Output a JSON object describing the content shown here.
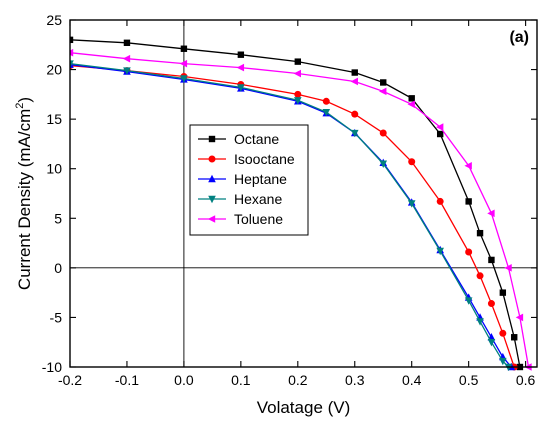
{
  "chart_data": {
    "type": "line",
    "panel_label": "(a)",
    "xlabel": "Volatage (V)",
    "ylabel_main": "Current Density (mA/cm",
    "ylabel_sup": "2",
    "ylabel_end": ")",
    "xlim": [
      -0.2,
      0.62
    ],
    "ylim": [
      -10,
      25
    ],
    "xticks": [
      -0.2,
      -0.1,
      0.0,
      0.1,
      0.2,
      0.3,
      0.4,
      0.5,
      0.6
    ],
    "xtick_labels": [
      "-0.2",
      "-0.1",
      "0.0",
      "0.1",
      "0.2",
      "0.3",
      "0.4",
      "0.5",
      "0.6"
    ],
    "yticks": [
      -10,
      -5,
      0,
      5,
      10,
      15,
      20,
      25
    ],
    "ytick_labels": [
      "-10",
      "-5",
      "0",
      "5",
      "10",
      "15",
      "20",
      "25"
    ],
    "reference_lines": {
      "x": 0,
      "y": 0
    },
    "legend_position": "center-left",
    "series": [
      {
        "name": "Octane",
        "color": "#000000",
        "marker": "square",
        "x": [
          -0.2,
          -0.1,
          0.0,
          0.1,
          0.2,
          0.3,
          0.35,
          0.4,
          0.45,
          0.5,
          0.52,
          0.54,
          0.56,
          0.58,
          0.59
        ],
        "y": [
          23.0,
          22.7,
          22.1,
          21.5,
          20.8,
          19.7,
          18.7,
          17.1,
          13.5,
          6.7,
          3.5,
          0.8,
          -2.5,
          -7.0,
          -10.0
        ]
      },
      {
        "name": "Isooctane",
        "color": "#ff0000",
        "marker": "circle",
        "x": [
          -0.2,
          -0.1,
          0.0,
          0.1,
          0.2,
          0.25,
          0.3,
          0.35,
          0.4,
          0.45,
          0.5,
          0.52,
          0.54,
          0.56,
          0.58
        ],
        "y": [
          20.4,
          19.9,
          19.3,
          18.5,
          17.5,
          16.8,
          15.5,
          13.6,
          10.7,
          6.7,
          1.6,
          -0.8,
          -3.6,
          -6.6,
          -10.0
        ]
      },
      {
        "name": "Heptane",
        "color": "#0000ff",
        "marker": "triangle-up",
        "x": [
          -0.2,
          -0.1,
          0.0,
          0.1,
          0.2,
          0.25,
          0.3,
          0.35,
          0.4,
          0.45,
          0.5,
          0.52,
          0.54,
          0.56,
          0.575
        ],
        "y": [
          20.5,
          19.8,
          19.0,
          18.1,
          16.8,
          15.6,
          13.6,
          10.6,
          6.6,
          1.8,
          -3.0,
          -5.0,
          -7.0,
          -9.0,
          -10.0
        ]
      },
      {
        "name": "Hexane",
        "color": "#008080",
        "marker": "triangle-down",
        "x": [
          -0.2,
          -0.1,
          0.0,
          0.1,
          0.2,
          0.25,
          0.3,
          0.35,
          0.4,
          0.45,
          0.5,
          0.52,
          0.54,
          0.56,
          0.57
        ],
        "y": [
          20.6,
          19.9,
          19.1,
          18.2,
          16.9,
          15.7,
          13.6,
          10.5,
          6.5,
          1.7,
          -3.3,
          -5.4,
          -7.5,
          -9.4,
          -10.0
        ]
      },
      {
        "name": "Toluene",
        "color": "#ff00ff",
        "marker": "triangle-left",
        "x": [
          -0.2,
          -0.1,
          0.0,
          0.1,
          0.2,
          0.3,
          0.35,
          0.4,
          0.45,
          0.5,
          0.54,
          0.57,
          0.59,
          0.605
        ],
        "y": [
          21.7,
          21.1,
          20.6,
          20.2,
          19.6,
          18.8,
          17.8,
          16.5,
          14.2,
          10.3,
          5.5,
          0.0,
          -5.0,
          -10.0
        ]
      }
    ]
  }
}
